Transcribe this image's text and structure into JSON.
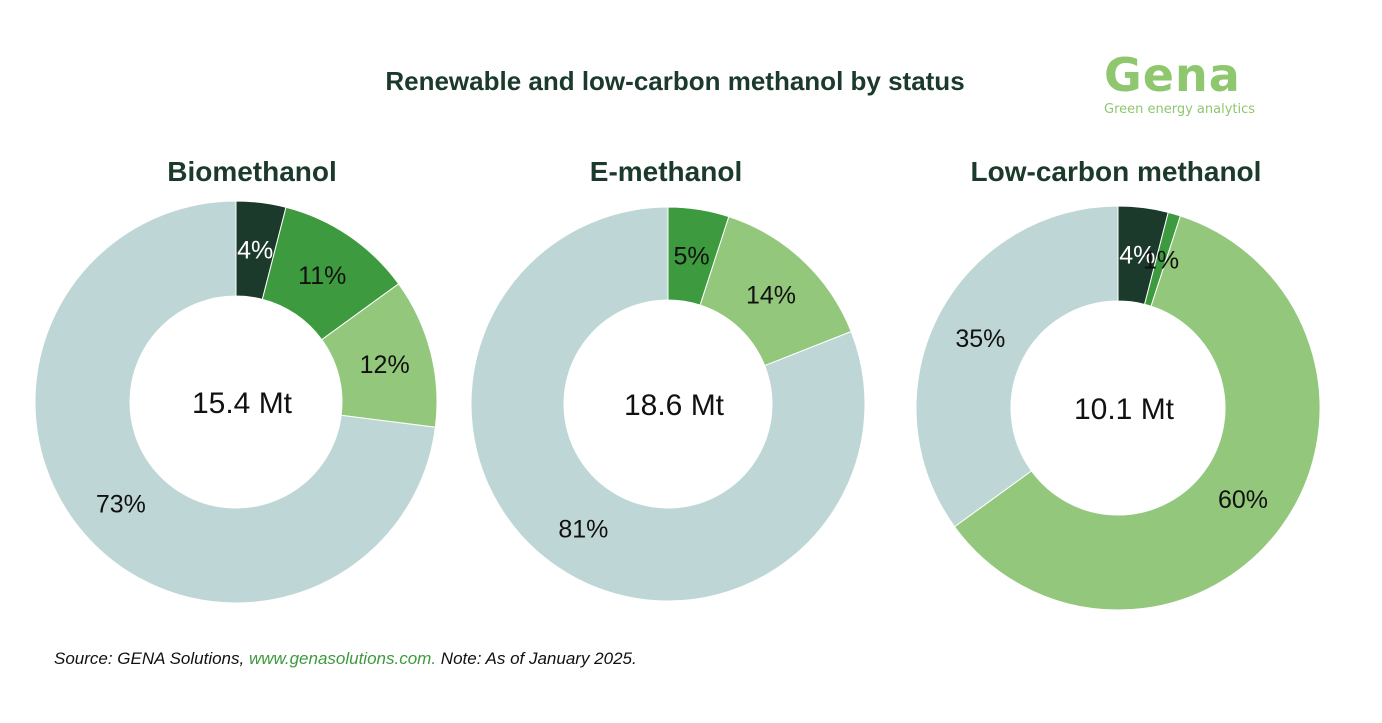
{
  "header": {
    "title": "Renewable and low-carbon methanol by status",
    "logo_word": "Gena",
    "logo_tagline": "Green energy analytics"
  },
  "colors": {
    "dark_green": "#1b3a2c",
    "mid_green": "#3d9a3e",
    "light_green": "#93c77b",
    "grey_blue": "#bfd6d6",
    "brand_green": "#8ec76e"
  },
  "chart_data": [
    {
      "type": "pie",
      "title": "Biomethanol",
      "center_label": "15.4 Mt",
      "values": [
        4,
        11,
        12,
        73
      ],
      "labels": [
        "4%",
        "11%",
        "12%",
        "73%"
      ],
      "colors": [
        "#1b3a2c",
        "#3d9a3e",
        "#93c77b",
        "#bfd6d6"
      ]
    },
    {
      "type": "pie",
      "title": "E-methanol",
      "center_label": "18.6 Mt",
      "values": [
        5,
        14,
        81
      ],
      "labels": [
        "5%",
        "14%",
        "81%"
      ],
      "colors": [
        "#3d9a3e",
        "#93c77b",
        "#bfd6d6"
      ]
    },
    {
      "type": "pie",
      "title": "Low-carbon methanol",
      "center_label": "10.1 Mt",
      "values": [
        4,
        1,
        60,
        35
      ],
      "labels": [
        "4%",
        "1%",
        "60%",
        "35%"
      ],
      "colors": [
        "#1b3a2c",
        "#3d9a3e",
        "#93c77b",
        "#bfd6d6"
      ]
    }
  ],
  "footer": {
    "source_prefix": "Source: GENA Solutions, ",
    "source_link": "www.genasolutions.com.",
    "note": " Note: As of January 2025."
  }
}
